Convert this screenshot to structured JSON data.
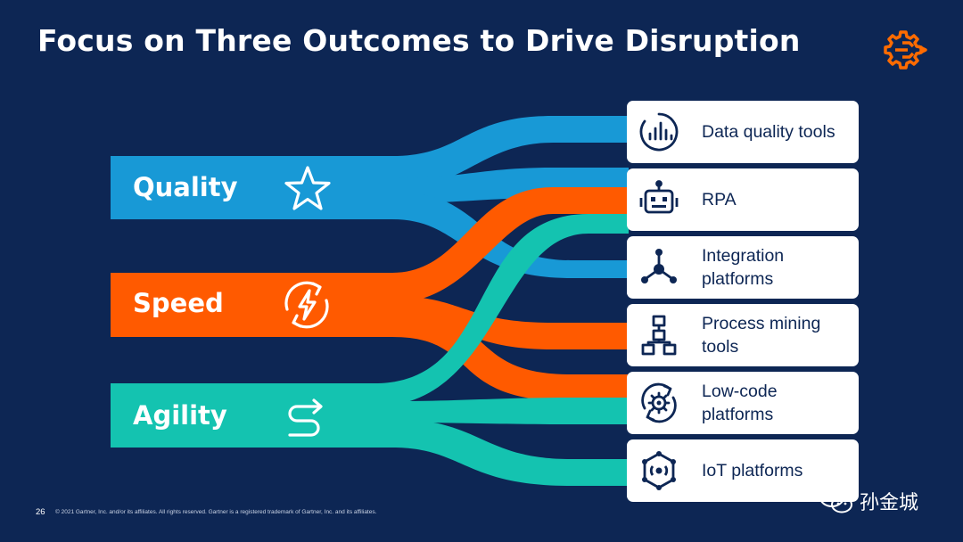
{
  "title": "Focus on Three Outcomes to Drive Disruption",
  "colors": {
    "background": "#0d2654",
    "quality": "#1899d6",
    "speed": "#ff5a00",
    "agility": "#14c3b0",
    "card": "#ffffff",
    "brand_icon": "#ff6b00"
  },
  "outcomes": [
    {
      "label": "Quality",
      "icon": "star-icon",
      "color": "#1899d6"
    },
    {
      "label": "Speed",
      "icon": "lightning-refresh-icon",
      "color": "#ff5a00"
    },
    {
      "label": "Agility",
      "icon": "winding-path-icon",
      "color": "#14c3b0"
    }
  ],
  "tools": [
    {
      "label": "Data quality tools",
      "icon": "data-quality-icon"
    },
    {
      "label": "RPA",
      "icon": "robot-icon"
    },
    {
      "label": "Integration platforms",
      "icon": "network-nodes-icon"
    },
    {
      "label": "Process mining tools",
      "icon": "process-flow-icon"
    },
    {
      "label": "Low-code platforms",
      "icon": "gear-cycle-icon"
    },
    {
      "label": "IoT platforms",
      "icon": "iot-hexagon-icon"
    }
  ],
  "footer": {
    "page_number": "26",
    "copyright": "© 2021 Gartner, Inc. and/or its affiliates. All rights reserved. Gartner is a registered trademark of Gartner, Inc. and its affiliates."
  },
  "watermark": {
    "text": "孙金城",
    "icon": "wechat-icon"
  }
}
